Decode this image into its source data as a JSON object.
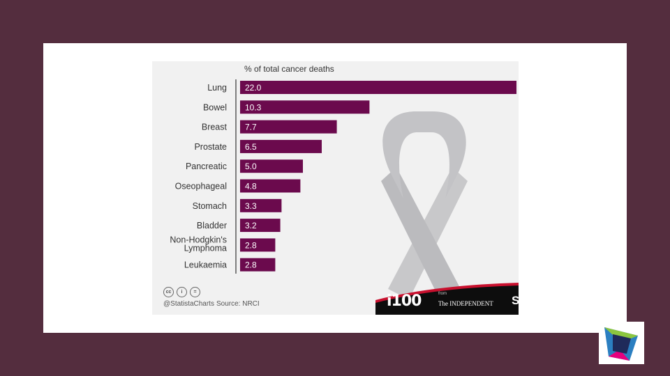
{
  "chart_data": {
    "type": "bar",
    "orientation": "horizontal",
    "title": "% of total cancer deaths",
    "categories": [
      "Lung",
      "Bowel",
      "Breast",
      "Prostate",
      "Pancreatic",
      "Oseophageal",
      "Stomach",
      "Bladder",
      "Non-Hodgkin's Lymphoma",
      "Leukaemia"
    ],
    "values": [
      22.0,
      10.3,
      7.7,
      6.5,
      5.0,
      4.8,
      3.3,
      3.2,
      2.8,
      2.8
    ],
    "value_labels": [
      "22.0",
      "10.3",
      "7.7",
      "6.5",
      "5.0",
      "4.8",
      "3.3",
      "3.2",
      "2.8",
      "2.8"
    ],
    "xlim": [
      0,
      22
    ],
    "grid": false,
    "bar_color": "#6b0a4d",
    "background_color": "#f1f1f1"
  },
  "footer": {
    "handle": "@StatistaCharts",
    "source": "Source: NRCI",
    "license_icons": [
      "cc-icon",
      "attribution-icon",
      "no-derivatives-icon"
    ],
    "license_glyphs": [
      "cc",
      "i",
      "="
    ]
  },
  "branding": {
    "i100": "i100",
    "from": "from",
    "independent": "The INDEPENDENT",
    "statista": "S"
  },
  "colors": {
    "page_background": "#542d3e",
    "slide_background": "#ffffff",
    "footer_band": "#0d0d0d",
    "footer_accent": "#c8102e"
  }
}
